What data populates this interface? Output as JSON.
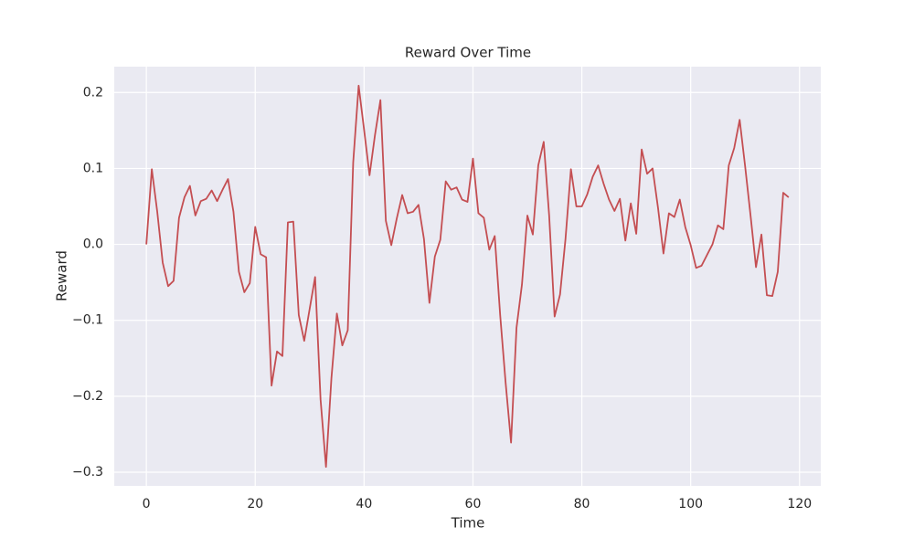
{
  "chart_data": {
    "type": "line",
    "title": "Reward Over Time",
    "x_label": "Time",
    "y_label": "Reward",
    "x": [
      0,
      1,
      2,
      3,
      4,
      5,
      6,
      7,
      8,
      9,
      10,
      11,
      12,
      13,
      14,
      15,
      16,
      17,
      18,
      19,
      20,
      21,
      22,
      23,
      24,
      25,
      26,
      27,
      28,
      29,
      30,
      31,
      32,
      33,
      34,
      35,
      36,
      37,
      38,
      39,
      40,
      41,
      42,
      43,
      44,
      45,
      46,
      47,
      48,
      49,
      50,
      51,
      52,
      53,
      54,
      55,
      56,
      57,
      58,
      59,
      60,
      61,
      62,
      63,
      64,
      65,
      66,
      67,
      68,
      69,
      70,
      71,
      72,
      73,
      74,
      75,
      76,
      77,
      78,
      79,
      80,
      81,
      82,
      83,
      84,
      85,
      86,
      87,
      88,
      89,
      90,
      91,
      92,
      93,
      94,
      95,
      96,
      97,
      98,
      99,
      100,
      101,
      102,
      103,
      104,
      105,
      106,
      107,
      108,
      109,
      110,
      111,
      112,
      113,
      114,
      115,
      116,
      117,
      118
    ],
    "series": [
      {
        "color": "#c44e52",
        "values": [
          0,
          0.099,
          0.043,
          -0.024,
          -0.055,
          -0.048,
          0.035,
          0.062,
          0.077,
          0.038,
          0.057,
          0.06,
          0.071,
          0.057,
          0.072,
          0.086,
          0.043,
          -0.036,
          -0.063,
          -0.051,
          0.023,
          -0.013,
          -0.017,
          -0.186,
          -0.141,
          -0.147,
          0.029,
          0.03,
          -0.093,
          -0.127,
          -0.085,
          -0.043,
          -0.204,
          -0.293,
          -0.176,
          -0.091,
          -0.133,
          -0.113,
          0.108,
          0.209,
          0.151,
          0.091,
          0.144,
          0.19,
          0.031,
          -0.001,
          0.034,
          0.065,
          0.041,
          0.043,
          0.052,
          0.007,
          -0.077,
          -0.016,
          0.006,
          0.083,
          0.072,
          0.075,
          0.059,
          0.056,
          0.113,
          0.041,
          0.035,
          -0.007,
          0.011,
          -0.093,
          -0.182,
          -0.261,
          -0.11,
          -0.053,
          0.038,
          0.013,
          0.104,
          0.135,
          0.038,
          -0.095,
          -0.066,
          0.007,
          0.099,
          0.05,
          0.05,
          0.066,
          0.089,
          0.104,
          0.08,
          0.059,
          0.044,
          0.06,
          0.005,
          0.054,
          0.014,
          0.125,
          0.093,
          0.1,
          0.048,
          -0.012,
          0.041,
          0.036,
          0.059,
          0.023,
          -0.001,
          -0.031,
          -0.028,
          -0.014,
          0,
          0.025,
          0.02,
          0.104,
          0.127,
          0.164,
          0.103,
          0.038,
          -0.03,
          0.013,
          -0.067,
          -0.068,
          -0.036,
          0.068,
          0.062
        ]
      }
    ],
    "xlim": [
      -5.9,
      123.9
    ],
    "ylim": [
      -0.318,
      0.234
    ],
    "xticks": [
      0,
      20,
      40,
      60,
      80,
      100,
      120
    ],
    "yticks": [
      {
        "value": -0.3,
        "label": "−0.3"
      },
      {
        "value": -0.2,
        "label": "−0.2"
      },
      {
        "value": -0.1,
        "label": "−0.1"
      },
      {
        "value": 0,
        "label": "0.0"
      },
      0.1,
      0.2
    ],
    "grid": true
  }
}
